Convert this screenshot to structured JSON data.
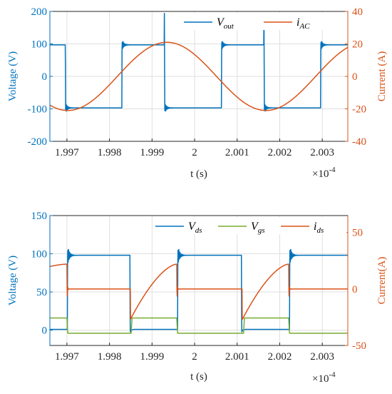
{
  "colors": {
    "blue": "#0072BD",
    "orange": "#D95319",
    "green": "#77AC30",
    "axis": "#262626",
    "grid": "#dfdfdf"
  },
  "chart_data": [
    {
      "type": "line",
      "xlabel": "t (s)",
      "x_exponent_label": "×10",
      "x_exponent_power": "-4",
      "xlim": [
        1.9966,
        2.0036
      ],
      "xticks": [
        1.997,
        1.998,
        1.999,
        2.0,
        2.001,
        2.002,
        2.003
      ],
      "xtick_labels": [
        "1.997",
        "1.998",
        "1.999",
        "2",
        "2.001",
        "2.002",
        "2.003"
      ],
      "left_axis": {
        "label": "Voltage (V)",
        "ylim": [
          -200,
          200
        ],
        "ticks": [
          -200,
          -100,
          0,
          100,
          200
        ]
      },
      "right_axis": {
        "label": "Current (A)",
        "ylim": [
          -40,
          40
        ],
        "ticks": [
          -40,
          -20,
          0,
          20,
          40
        ]
      },
      "grid": true,
      "legend_position": "top-right",
      "series": [
        {
          "name": "V",
          "name_sub": "out",
          "axis": "left",
          "shape": "square_wave",
          "high": 97,
          "low": -97,
          "overshoot": 18,
          "rise_times": [
            1.99829,
            2.00063,
            2.00296
          ],
          "fall_times": [
            1.99696,
            1.99929,
            2.00163
          ]
        },
        {
          "name": "i",
          "name_sub": "AC",
          "axis": "right",
          "shape": "sine",
          "amplitude": 21,
          "period": 0.00466,
          "peak_at": 1.99935
        }
      ]
    },
    {
      "type": "line",
      "xlabel": "t (s)",
      "x_exponent_label": "×10",
      "x_exponent_power": "-4",
      "xlim": [
        1.9966,
        2.0036
      ],
      "xticks": [
        1.997,
        1.998,
        1.999,
        2.0,
        2.001,
        2.002,
        2.003
      ],
      "xtick_labels": [
        "1.997",
        "1.998",
        "1.999",
        "2",
        "2.001",
        "2.002",
        "2.003"
      ],
      "left_axis": {
        "label": "Voltage (V)",
        "ylim": [
          -20,
          150
        ],
        "ticks": [
          0,
          50,
          100,
          150
        ]
      },
      "right_axis": {
        "label": "Current(A)",
        "ylim": [
          -50,
          65
        ],
        "ticks": [
          -50,
          0,
          50
        ]
      },
      "grid": true,
      "legend_position": "top-right",
      "series": [
        {
          "name": "V",
          "name_sub": "ds",
          "axis": "left",
          "shape": "pulse",
          "high": 98,
          "low": 1,
          "overshoot": 14,
          "on_intervals": [
            [
              1.99701,
              1.99848
            ],
            [
              1.9996,
              2.0011
            ],
            [
              2.00223,
              2.00373
            ]
          ]
        },
        {
          "name": "V",
          "name_sub": "gs",
          "axis": "left",
          "shape": "pulse",
          "high": 16,
          "low": -4,
          "on_intervals": [
            [
              1.9965,
              1.997
            ],
            [
              1.99851,
              1.99958
            ],
            [
              2.00115,
              2.00221
            ]
          ]
        },
        {
          "name": "i",
          "name_sub": "ds",
          "axis": "right",
          "shape": "ramp",
          "flat": 0,
          "ramp_start": -27,
          "ramp_peak": 22,
          "ramp_intervals": [
            [
              1.9965,
              1.997
            ],
            [
              1.99849,
              1.99958
            ],
            [
              2.00112,
              2.00221
            ]
          ]
        }
      ]
    }
  ]
}
